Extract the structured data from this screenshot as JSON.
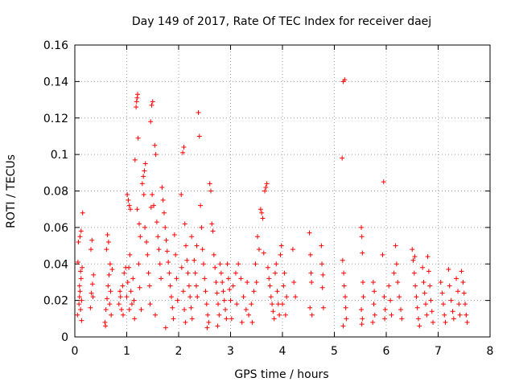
{
  "chart_data": {
    "type": "scatter",
    "title": "Day 149 of 2017, Rate Of TEC Index for receiver daej",
    "xlabel": "GPS time / hours",
    "ylabel": "ROTI / TECUs",
    "xlim": [
      0,
      8
    ],
    "ylim": [
      0,
      0.16
    ],
    "x_ticks": [
      "0",
      "1",
      "2",
      "3",
      "4",
      "5",
      "6",
      "7",
      "8"
    ],
    "y_ticks": [
      "0",
      "0.02",
      "0.04",
      "0.06",
      "0.08",
      "0.1",
      "0.12",
      "0.14",
      "0.16"
    ],
    "grid": true,
    "marker": "plus",
    "color": "#ff0000",
    "series": [
      {
        "name": "ROTI",
        "points": [
          [
            0.05,
            0.012
          ],
          [
            0.08,
            0.018
          ],
          [
            0.1,
            0.025
          ],
          [
            0.12,
            0.032
          ],
          [
            0.14,
            0.038
          ],
          [
            0.06,
            0.041
          ],
          [
            0.09,
            0.028
          ],
          [
            0.11,
            0.015
          ],
          [
            0.13,
            0.009
          ],
          [
            0.07,
            0.052
          ],
          [
            0.1,
            0.055
          ],
          [
            0.12,
            0.058
          ],
          [
            0.15,
            0.068
          ],
          [
            0.11,
            0.036
          ],
          [
            0.09,
            0.022
          ],
          [
            0.13,
            0.02
          ],
          [
            0.3,
            0.016
          ],
          [
            0.32,
            0.024
          ],
          [
            0.34,
            0.029
          ],
          [
            0.36,
            0.034
          ],
          [
            0.31,
            0.048
          ],
          [
            0.33,
            0.053
          ],
          [
            0.35,
            0.022
          ],
          [
            0.58,
            0.008
          ],
          [
            0.6,
            0.015
          ],
          [
            0.62,
            0.021
          ],
          [
            0.64,
            0.028
          ],
          [
            0.66,
            0.034
          ],
          [
            0.68,
            0.04
          ],
          [
            0.61,
            0.048
          ],
          [
            0.63,
            0.056
          ],
          [
            0.65,
            0.052
          ],
          [
            0.67,
            0.018
          ],
          [
            0.7,
            0.012
          ],
          [
            0.59,
            0.006
          ],
          [
            0.72,
            0.037
          ],
          [
            0.69,
            0.025
          ],
          [
            0.85,
            0.018
          ],
          [
            0.88,
            0.022
          ],
          [
            0.92,
            0.028
          ],
          [
            0.95,
            0.035
          ],
          [
            0.98,
            0.038
          ],
          [
            0.9,
            0.015
          ],
          [
            0.87,
            0.025
          ],
          [
            0.93,
            0.012
          ],
          [
            1.0,
            0.022
          ],
          [
            1.02,
            0.03
          ],
          [
            1.04,
            0.038
          ],
          [
            1.06,
            0.045
          ],
          [
            1.01,
            0.078
          ],
          [
            1.03,
            0.075
          ],
          [
            1.05,
            0.072
          ],
          [
            1.07,
            0.07
          ],
          [
            1.08,
            0.025
          ],
          [
            1.1,
            0.018
          ],
          [
            1.12,
            0.032
          ],
          [
            1.14,
            0.02
          ],
          [
            1.16,
            0.097
          ],
          [
            1.18,
            0.126
          ],
          [
            1.19,
            0.129
          ],
          [
            1.2,
            0.131
          ],
          [
            1.21,
            0.133
          ],
          [
            1.22,
            0.109
          ],
          [
            1.24,
            0.062
          ],
          [
            1.26,
            0.055
          ],
          [
            1.2,
            0.07
          ],
          [
            1.23,
            0.04
          ],
          [
            1.25,
            0.027
          ],
          [
            1.28,
            0.015
          ],
          [
            1.3,
            0.084
          ],
          [
            1.32,
            0.088
          ],
          [
            1.34,
            0.091
          ],
          [
            1.36,
            0.095
          ],
          [
            1.33,
            0.078
          ],
          [
            1.35,
            0.06
          ],
          [
            1.38,
            0.052
          ],
          [
            1.4,
            0.045
          ],
          [
            1.42,
            0.035
          ],
          [
            1.44,
            0.028
          ],
          [
            1.46,
            0.118
          ],
          [
            1.48,
            0.127
          ],
          [
            1.5,
            0.129
          ],
          [
            1.47,
            0.071
          ],
          [
            1.49,
            0.078
          ],
          [
            1.52,
            0.072
          ],
          [
            1.54,
            0.105
          ],
          [
            1.56,
            0.1
          ],
          [
            1.58,
            0.063
          ],
          [
            1.6,
            0.055
          ],
          [
            1.62,
            0.048
          ],
          [
            1.64,
            0.04
          ],
          [
            1.66,
            0.032
          ],
          [
            1.68,
            0.082
          ],
          [
            1.7,
            0.075
          ],
          [
            1.72,
            0.068
          ],
          [
            1.74,
            0.06
          ],
          [
            1.76,
            0.053
          ],
          [
            1.78,
            0.047
          ],
          [
            1.8,
            0.041
          ],
          [
            1.82,
            0.035
          ],
          [
            1.84,
            0.028
          ],
          [
            1.86,
            0.022
          ],
          [
            1.88,
            0.016
          ],
          [
            1.9,
            0.01
          ],
          [
            1.92,
            0.056
          ],
          [
            1.94,
            0.045
          ],
          [
            1.96,
            0.032
          ],
          [
            1.98,
            0.02
          ],
          [
            1.75,
            0.005
          ],
          [
            1.55,
            0.012
          ],
          [
            1.45,
            0.018
          ],
          [
            1.15,
            0.01
          ],
          [
            1.05,
            0.015
          ],
          [
            2.05,
            0.078
          ],
          [
            2.08,
            0.101
          ],
          [
            2.1,
            0.104
          ],
          [
            2.12,
            0.062
          ],
          [
            2.14,
            0.05
          ],
          [
            2.16,
            0.042
          ],
          [
            2.18,
            0.035
          ],
          [
            2.2,
            0.028
          ],
          [
            2.22,
            0.022
          ],
          [
            2.24,
            0.016
          ],
          [
            2.26,
            0.01
          ],
          [
            2.06,
            0.038
          ],
          [
            2.09,
            0.025
          ],
          [
            2.11,
            0.015
          ],
          [
            2.13,
            0.008
          ],
          [
            2.3,
            0.042
          ],
          [
            2.32,
            0.035
          ],
          [
            2.34,
            0.028
          ],
          [
            2.36,
            0.022
          ],
          [
            2.38,
            0.123
          ],
          [
            2.4,
            0.11
          ],
          [
            2.42,
            0.072
          ],
          [
            2.44,
            0.06
          ],
          [
            2.46,
            0.048
          ],
          [
            2.48,
            0.04
          ],
          [
            2.5,
            0.032
          ],
          [
            2.52,
            0.025
          ],
          [
            2.54,
            0.018
          ],
          [
            2.56,
            0.012
          ],
          [
            2.58,
            0.008
          ],
          [
            2.6,
            0.084
          ],
          [
            2.62,
            0.08
          ],
          [
            2.64,
            0.062
          ],
          [
            2.66,
            0.058
          ],
          [
            2.68,
            0.045
          ],
          [
            2.7,
            0.038
          ],
          [
            2.72,
            0.03
          ],
          [
            2.74,
            0.024
          ],
          [
            2.76,
            0.018
          ],
          [
            2.78,
            0.012
          ],
          [
            2.8,
            0.04
          ],
          [
            2.82,
            0.035
          ],
          [
            2.84,
            0.03
          ],
          [
            2.86,
            0.025
          ],
          [
            2.88,
            0.02
          ],
          [
            2.9,
            0.015
          ],
          [
            2.92,
            0.01
          ],
          [
            2.94,
            0.04
          ],
          [
            2.96,
            0.032
          ],
          [
            2.98,
            0.026
          ],
          [
            2.75,
            0.006
          ],
          [
            2.55,
            0.005
          ],
          [
            2.35,
            0.05
          ],
          [
            2.25,
            0.055
          ],
          [
            3.0,
            0.02
          ],
          [
            3.05,
            0.028
          ],
          [
            3.1,
            0.035
          ],
          [
            3.15,
            0.04
          ],
          [
            3.2,
            0.032
          ],
          [
            3.25,
            0.022
          ],
          [
            3.3,
            0.015
          ],
          [
            3.35,
            0.012
          ],
          [
            3.4,
            0.018
          ],
          [
            3.45,
            0.025
          ],
          [
            3.5,
            0.03
          ],
          [
            3.55,
            0.048
          ],
          [
            3.58,
            0.07
          ],
          [
            3.6,
            0.068
          ],
          [
            3.62,
            0.065
          ],
          [
            3.64,
            0.046
          ],
          [
            3.66,
            0.08
          ],
          [
            3.68,
            0.082
          ],
          [
            3.7,
            0.084
          ],
          [
            3.72,
            0.038
          ],
          [
            3.74,
            0.032
          ],
          [
            3.76,
            0.028
          ],
          [
            3.78,
            0.022
          ],
          [
            3.8,
            0.018
          ],
          [
            3.82,
            0.014
          ],
          [
            3.84,
            0.01
          ],
          [
            3.86,
            0.035
          ],
          [
            3.88,
            0.04
          ],
          [
            3.9,
            0.025
          ],
          [
            3.92,
            0.018
          ],
          [
            3.94,
            0.012
          ],
          [
            3.96,
            0.045
          ],
          [
            3.98,
            0.05
          ],
          [
            3.52,
            0.055
          ],
          [
            3.48,
            0.04
          ],
          [
            3.42,
            0.008
          ],
          [
            3.02,
            0.01
          ],
          [
            3.12,
            0.018
          ],
          [
            3.22,
            0.008
          ],
          [
            3.32,
            0.03
          ],
          [
            4.0,
            0.018
          ],
          [
            4.02,
            0.028
          ],
          [
            4.04,
            0.035
          ],
          [
            4.06,
            0.012
          ],
          [
            4.08,
            0.022
          ],
          [
            4.2,
            0.048
          ],
          [
            4.22,
            0.03
          ],
          [
            4.25,
            0.022
          ],
          [
            4.52,
            0.057
          ],
          [
            4.54,
            0.045
          ],
          [
            4.55,
            0.035
          ],
          [
            4.56,
            0.03
          ],
          [
            4.53,
            0.016
          ],
          [
            4.57,
            0.012
          ],
          [
            4.75,
            0.05
          ],
          [
            4.76,
            0.04
          ],
          [
            4.78,
            0.034
          ],
          [
            4.77,
            0.027
          ],
          [
            4.79,
            0.016
          ],
          [
            5.15,
            0.098
          ],
          [
            5.17,
            0.14
          ],
          [
            5.2,
            0.141
          ],
          [
            5.16,
            0.042
          ],
          [
            5.18,
            0.035
          ],
          [
            5.19,
            0.028
          ],
          [
            5.21,
            0.022
          ],
          [
            5.22,
            0.016
          ],
          [
            5.23,
            0.01
          ],
          [
            5.17,
            0.006
          ],
          [
            5.52,
            0.06
          ],
          [
            5.53,
            0.055
          ],
          [
            5.54,
            0.046
          ],
          [
            5.55,
            0.03
          ],
          [
            5.56,
            0.022
          ],
          [
            5.52,
            0.015
          ],
          [
            5.54,
            0.01
          ],
          [
            5.53,
            0.007
          ],
          [
            5.75,
            0.03
          ],
          [
            5.77,
            0.025
          ],
          [
            5.76,
            0.018
          ],
          [
            5.78,
            0.012
          ],
          [
            5.74,
            0.008
          ],
          [
            5.95,
            0.085
          ],
          [
            5.93,
            0.045
          ],
          [
            5.96,
            0.022
          ],
          [
            5.98,
            0.015
          ],
          [
            5.97,
            0.01
          ],
          [
            6.05,
            0.028
          ],
          [
            6.08,
            0.02
          ],
          [
            6.1,
            0.012
          ],
          [
            6.15,
            0.035
          ],
          [
            6.18,
            0.05
          ],
          [
            6.2,
            0.04
          ],
          [
            6.22,
            0.03
          ],
          [
            6.25,
            0.022
          ],
          [
            6.28,
            0.015
          ],
          [
            6.3,
            0.01
          ],
          [
            6.5,
            0.048
          ],
          [
            6.52,
            0.042
          ],
          [
            6.54,
            0.035
          ],
          [
            6.56,
            0.028
          ],
          [
            6.58,
            0.022
          ],
          [
            6.6,
            0.016
          ],
          [
            6.62,
            0.01
          ],
          [
            6.64,
            0.006
          ],
          [
            6.55,
            0.044
          ],
          [
            6.7,
            0.038
          ],
          [
            6.72,
            0.03
          ],
          [
            6.74,
            0.024
          ],
          [
            6.76,
            0.018
          ],
          [
            6.78,
            0.012
          ],
          [
            6.8,
            0.044
          ],
          [
            6.82,
            0.036
          ],
          [
            6.84,
            0.028
          ],
          [
            6.86,
            0.02
          ],
          [
            6.88,
            0.014
          ],
          [
            6.9,
            0.008
          ],
          [
            7.05,
            0.03
          ],
          [
            7.08,
            0.024
          ],
          [
            7.1,
            0.018
          ],
          [
            7.12,
            0.012
          ],
          [
            7.14,
            0.008
          ],
          [
            7.2,
            0.037
          ],
          [
            7.22,
            0.028
          ],
          [
            7.25,
            0.02
          ],
          [
            7.28,
            0.014
          ],
          [
            7.3,
            0.01
          ],
          [
            7.35,
            0.032
          ],
          [
            7.38,
            0.025
          ],
          [
            7.4,
            0.018
          ],
          [
            7.42,
            0.012
          ],
          [
            7.45,
            0.036
          ],
          [
            7.48,
            0.03
          ],
          [
            7.5,
            0.024
          ],
          [
            7.52,
            0.018
          ],
          [
            7.54,
            0.012
          ],
          [
            7.56,
            0.008
          ]
        ]
      }
    ]
  }
}
